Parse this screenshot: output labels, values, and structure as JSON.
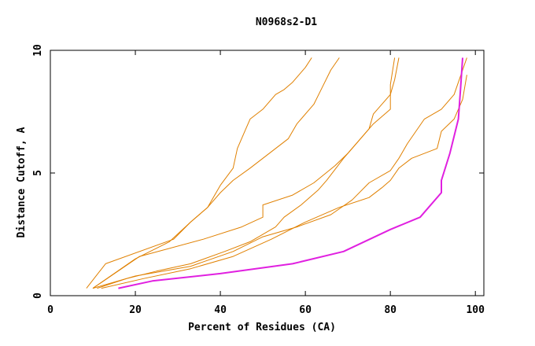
{
  "chart_data": {
    "type": "line",
    "title": "N0968s2-D1",
    "xlabel": "Percent of Residues (CA)",
    "ylabel": "Distance Cutoff, A",
    "xlim": [
      0,
      102
    ],
    "ylim": [
      0,
      10
    ],
    "xticks": [
      0,
      20,
      40,
      60,
      80,
      100
    ],
    "yticks": [
      0,
      5,
      10
    ],
    "xtick_labels": [
      "0",
      "20",
      "40",
      "60",
      "80",
      "100"
    ],
    "ytick_labels": [
      "0",
      "5",
      "10"
    ],
    "grid": false,
    "legend": "none",
    "colors": {
      "orange": "#e08000",
      "magenta": "#e020e0",
      "frame": "#000000"
    },
    "series": [
      {
        "color": "#e08000",
        "width": 1,
        "points": [
          [
            8.5,
            0.3
          ],
          [
            13,
            1.3
          ],
          [
            29,
            2.3
          ],
          [
            33,
            3.0
          ],
          [
            37,
            3.6
          ],
          [
            40,
            4.5
          ],
          [
            43,
            5.2
          ],
          [
            44,
            6.0
          ],
          [
            46,
            6.8
          ],
          [
            47,
            7.2
          ],
          [
            50,
            7.6
          ],
          [
            53,
            8.2
          ],
          [
            55,
            8.4
          ],
          [
            57,
            8.7
          ],
          [
            60,
            9.3
          ],
          [
            61.5,
            9.7
          ]
        ]
      },
      {
        "color": "#e08000",
        "width": 1,
        "points": [
          [
            10,
            0.3
          ],
          [
            20,
            1.5
          ],
          [
            28,
            2.2
          ],
          [
            33,
            3.0
          ],
          [
            37,
            3.6
          ],
          [
            40,
            4.2
          ],
          [
            43,
            4.7
          ],
          [
            47,
            5.2
          ],
          [
            50,
            5.6
          ],
          [
            53,
            6.0
          ],
          [
            56,
            6.4
          ],
          [
            58,
            7.0
          ],
          [
            62,
            7.8
          ],
          [
            64,
            8.5
          ],
          [
            66,
            9.2
          ],
          [
            68,
            9.7
          ]
        ]
      },
      {
        "color": "#e08000",
        "width": 1,
        "points": [
          [
            10,
            0.3
          ],
          [
            21,
            1.6
          ],
          [
            36,
            2.3
          ],
          [
            45,
            2.8
          ],
          [
            50,
            3.2
          ],
          [
            50,
            3.7
          ],
          [
            57,
            4.1
          ],
          [
            62,
            4.6
          ],
          [
            67,
            5.3
          ],
          [
            70,
            5.8
          ],
          [
            73,
            6.4
          ],
          [
            75,
            6.8
          ],
          [
            76,
            7.4
          ],
          [
            78,
            7.8
          ],
          [
            80,
            8.2
          ],
          [
            81,
            8.8
          ],
          [
            82,
            9.7
          ]
        ]
      },
      {
        "color": "#e08000",
        "width": 1,
        "points": [
          [
            11,
            0.3
          ],
          [
            18,
            0.7
          ],
          [
            25,
            1.0
          ],
          [
            33,
            1.3
          ],
          [
            41,
            1.8
          ],
          [
            47,
            2.2
          ],
          [
            53,
            2.8
          ],
          [
            55,
            3.2
          ],
          [
            59,
            3.7
          ],
          [
            63,
            4.3
          ],
          [
            65,
            4.7
          ],
          [
            69,
            5.6
          ],
          [
            73,
            6.4
          ],
          [
            76,
            7.0
          ],
          [
            80,
            7.6
          ],
          [
            80,
            8.6
          ],
          [
            81,
            9.7
          ]
        ]
      },
      {
        "color": "#e08000",
        "width": 1,
        "points": [
          [
            10,
            0.3
          ],
          [
            20,
            0.8
          ],
          [
            33,
            1.2
          ],
          [
            43,
            1.8
          ],
          [
            50,
            2.4
          ],
          [
            58,
            2.8
          ],
          [
            66,
            3.3
          ],
          [
            71,
            3.9
          ],
          [
            75,
            4.6
          ],
          [
            80,
            5.1
          ],
          [
            82,
            5.6
          ],
          [
            84,
            6.2
          ],
          [
            86,
            6.7
          ],
          [
            88,
            7.2
          ],
          [
            92,
            7.6
          ],
          [
            95,
            8.2
          ],
          [
            98,
            9.7
          ]
        ]
      },
      {
        "color": "#e08000",
        "width": 1,
        "points": [
          [
            12,
            0.3
          ],
          [
            22,
            0.7
          ],
          [
            33,
            1.1
          ],
          [
            43,
            1.6
          ],
          [
            52,
            2.3
          ],
          [
            60,
            3.0
          ],
          [
            68,
            3.6
          ],
          [
            75,
            4.0
          ],
          [
            78,
            4.4
          ],
          [
            80,
            4.7
          ],
          [
            82,
            5.2
          ],
          [
            85,
            5.6
          ],
          [
            91,
            6.0
          ],
          [
            92,
            6.7
          ],
          [
            95,
            7.2
          ],
          [
            97,
            8.0
          ],
          [
            98,
            9.0
          ]
        ]
      },
      {
        "color": "#e020e0",
        "width": 2,
        "points": [
          [
            16,
            0.3
          ],
          [
            24,
            0.6
          ],
          [
            40,
            0.9
          ],
          [
            57,
            1.3
          ],
          [
            69,
            1.8
          ],
          [
            80,
            2.7
          ],
          [
            87,
            3.2
          ],
          [
            89,
            3.6
          ],
          [
            92,
            4.2
          ],
          [
            92,
            4.7
          ],
          [
            94,
            5.8
          ],
          [
            96,
            7.2
          ],
          [
            96.5,
            8.4
          ],
          [
            97,
            9.7
          ]
        ]
      }
    ]
  }
}
